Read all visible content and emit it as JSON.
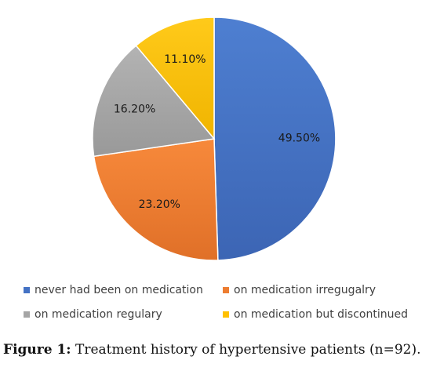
{
  "chart_data": {
    "type": "pie",
    "slices": [
      {
        "label": "never had been on medication",
        "value": 49.5,
        "display": "49.50%",
        "color": "#4472C4"
      },
      {
        "label": "on medication irregugalry",
        "value": 23.2,
        "display": "23.20%",
        "color": "#ED7D31"
      },
      {
        "label": "on medication regulary",
        "value": 16.2,
        "display": "16.20%",
        "color": "#A5A5A5"
      },
      {
        "label": "on medication but discontinued",
        "value": 11.1,
        "display": "11.10%",
        "color": "#FFC000"
      }
    ],
    "start": "12 o'clock",
    "direction": "clockwise",
    "legend_position": "bottom"
  },
  "legend": {
    "item0": "never had been on medication",
    "item1": "on medication irregugalry",
    "item2": "on medication regulary",
    "item3": "on medication but discontinued"
  },
  "caption": {
    "label": "Figure 1:",
    "text": " Treatment history of hypertensive patients (n=92)."
  }
}
